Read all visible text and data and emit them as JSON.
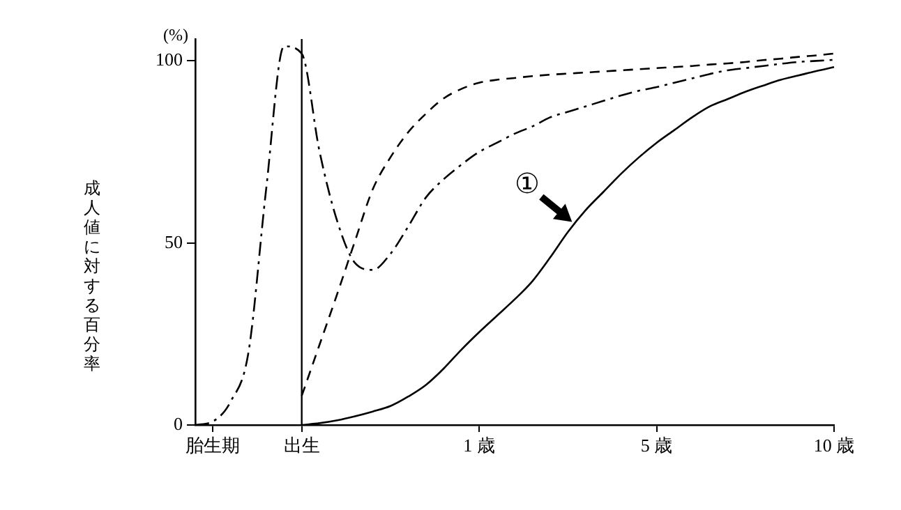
{
  "chart_data": {
    "type": "line",
    "ylabel": "成人値に対する百分率",
    "annotations": [
      "(%)",
      "①"
    ],
    "categories": [
      null,
      "胎生期",
      null,
      null,
      null,
      null,
      "出生",
      null,
      null,
      null,
      null,
      null,
      null,
      null,
      null,
      null,
      "1 歳",
      null,
      null,
      null,
      null,
      null,
      null,
      null,
      null,
      null,
      "5 歳",
      null,
      null,
      null,
      null,
      null,
      null,
      null,
      null,
      null,
      "10 歳"
    ],
    "ylim": [
      0,
      106
    ],
    "yticks": [
      0,
      50,
      100
    ],
    "grid": false,
    "legend": false,
    "marker": "none",
    "ref_lines": [
      {
        "axis": "x",
        "value": "出生",
        "color": "#000000",
        "line_style": "solid"
      }
    ],
    "series": [
      {
        "color": "#000000",
        "line_style": "solid",
        "values": [
          null,
          null,
          null,
          null,
          null,
          null,
          0,
          0.5,
          1.3,
          2.4,
          3.7,
          5.2,
          7.8,
          11,
          15.5,
          20.7,
          25.5,
          30,
          34.5,
          39.5,
          46,
          53,
          59,
          64,
          69,
          73.5,
          77.5,
          81,
          84.5,
          87.5,
          89.5,
          91.5,
          93.2,
          94.8,
          96,
          97.2,
          98.3
        ]
      },
      {
        "color": "#000000",
        "line_style": "dashed",
        "values": [
          null,
          null,
          null,
          null,
          null,
          null,
          8,
          22,
          36,
          50.5,
          64.7,
          73.5,
          80.4,
          85.5,
          89.7,
          92.3,
          94,
          94.8,
          95.3,
          95.8,
          96.2,
          96.5,
          96.8,
          97.1,
          97.4,
          97.7,
          98,
          98.3,
          98.6,
          99,
          99.3,
          99.7,
          100.2,
          100.6,
          101.1,
          101.5,
          102
        ]
      },
      {
        "color": "#000000",
        "line_style": "dashdot",
        "values": [
          0,
          1,
          6.5,
          20,
          65,
          104,
          102,
          75.2,
          56,
          44.5,
          42.6,
          47,
          54.5,
          62.5,
          67.5,
          71.5,
          75,
          77.5,
          80,
          82,
          84.5,
          86,
          87.5,
          89,
          90.5,
          91.8,
          92.8,
          94,
          95.2,
          96.4,
          97.4,
          98,
          98.6,
          99.2,
          99.7,
          100,
          100.3
        ]
      }
    ]
  }
}
